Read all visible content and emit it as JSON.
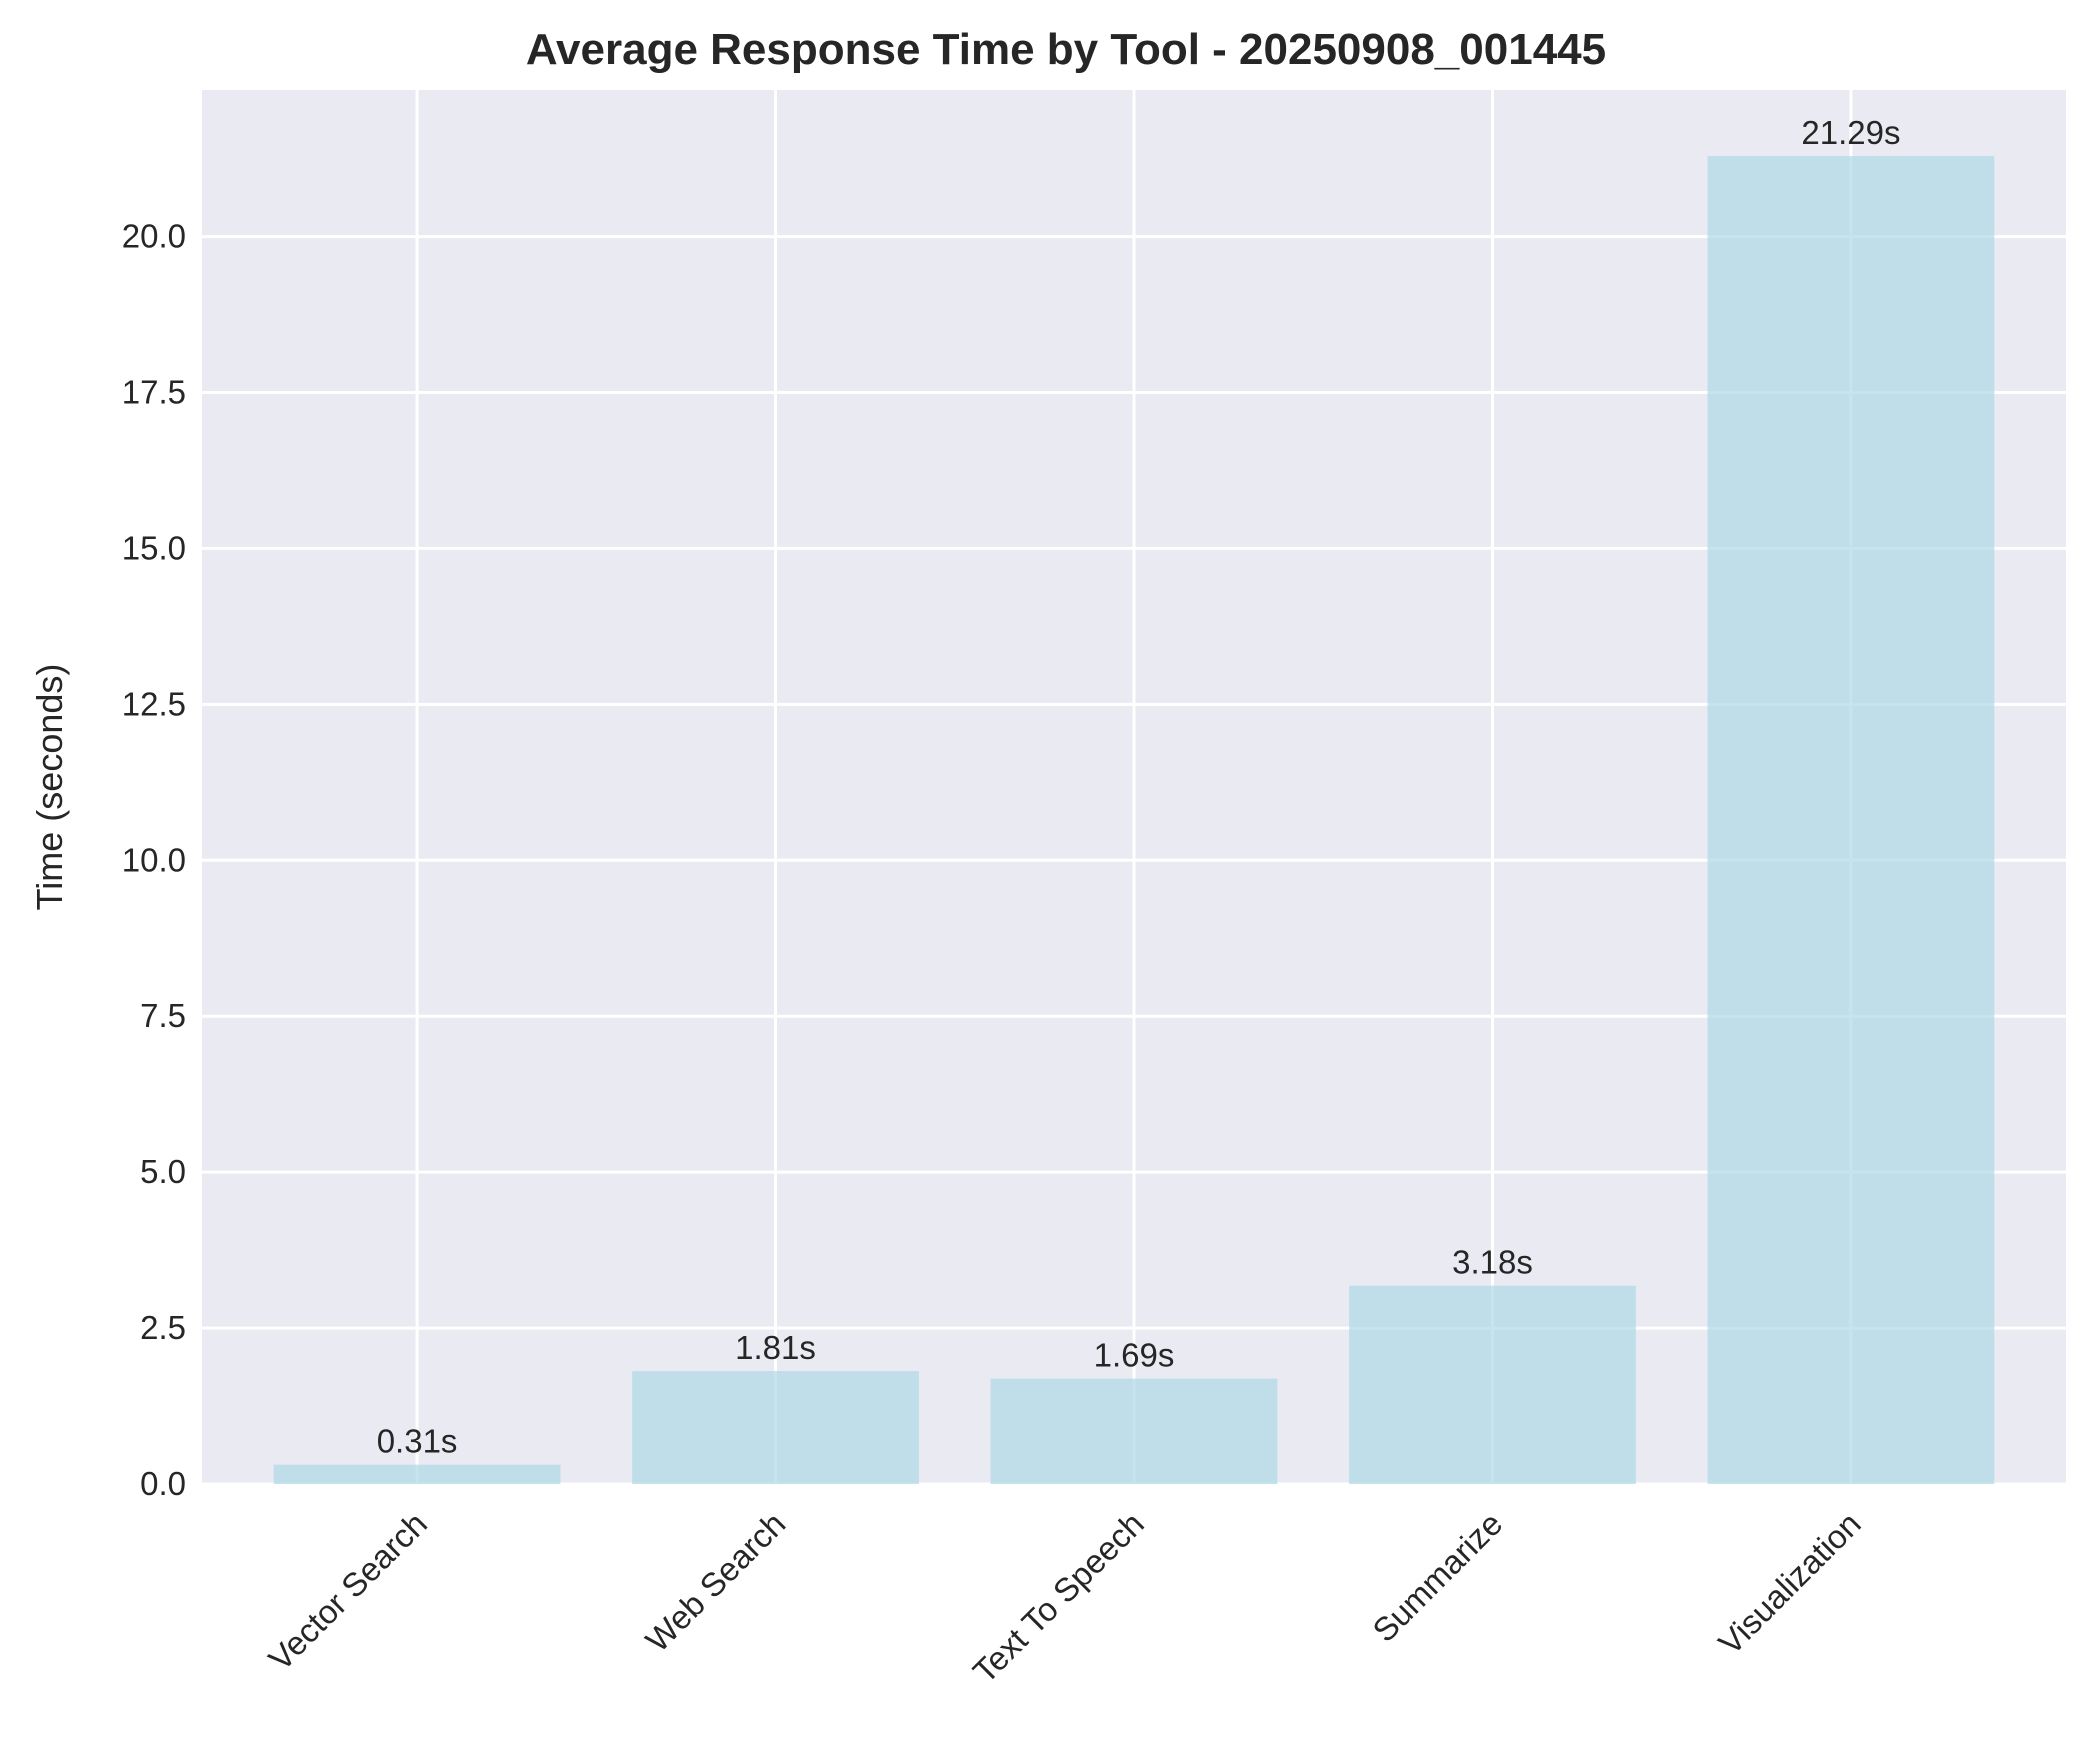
{
  "chart_data": {
    "type": "bar",
    "title": "Average Response Time by Tool - 20250908_001445",
    "xlabel": "",
    "ylabel": "Time (seconds)",
    "categories": [
      "Vector Search",
      "Web Search",
      "Text To Speech",
      "Summarize",
      "Visualization"
    ],
    "values": [
      0.31,
      1.81,
      1.69,
      3.18,
      21.29
    ],
    "value_labels": [
      "0.31s",
      "1.81s",
      "1.69s",
      "3.18s",
      "21.29s"
    ],
    "ylim": [
      0,
      22.35
    ],
    "yticks": [
      0.0,
      2.5,
      5.0,
      7.5,
      10.0,
      12.5,
      15.0,
      17.5,
      20.0
    ],
    "ytick_labels": [
      "0.0",
      "2.5",
      "5.0",
      "7.5",
      "10.0",
      "12.5",
      "15.0",
      "17.5",
      "20.0"
    ],
    "grid": true,
    "legend": "none",
    "colors": {
      "bar": "#add8e6",
      "plot_background": "#eaeaf2",
      "grid": "#ffffff",
      "text": "#262626"
    }
  }
}
